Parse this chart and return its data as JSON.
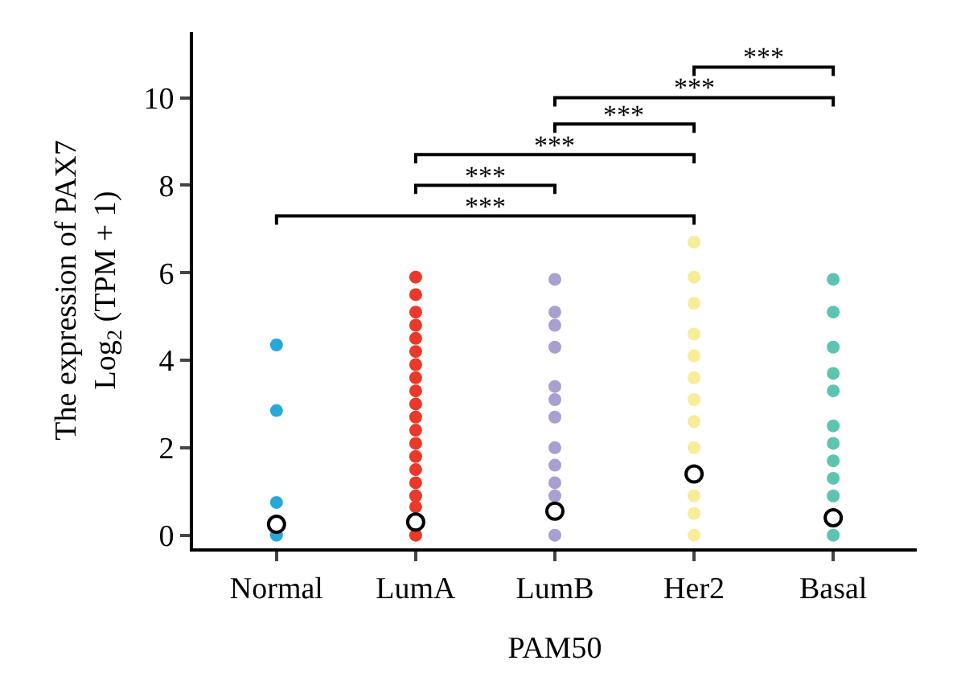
{
  "chart_data": {
    "type": "scatter",
    "xlabel": "PAM50",
    "ylabel": "The expression of PAX7\nLog$_{2}$ (TPM + 1)",
    "categories": [
      "Normal",
      "LumA",
      "LumB",
      "Her2",
      "Basal"
    ],
    "ylim": [
      -0.3,
      11.5
    ],
    "yticks": [
      0,
      2,
      4,
      6,
      8,
      10
    ],
    "grid": false,
    "marker": "circle",
    "series": [
      {
        "color": "#29a8d8",
        "x": [
          "Normal",
          "Normal",
          "Normal",
          "Normal"
        ],
        "values": [
          4.35,
          2.85,
          0.75,
          0
        ]
      },
      {
        "color": "#e8392a",
        "x": [
          "LumA",
          "LumA",
          "LumA",
          "LumA",
          "LumA",
          "LumA",
          "LumA",
          "LumA",
          "LumA",
          "LumA",
          "LumA",
          "LumA",
          "LumA",
          "LumA",
          "LumA",
          "LumA",
          "LumA",
          "LumA",
          "LumA"
        ],
        "values": [
          5.9,
          5.5,
          5.1,
          4.8,
          4.5,
          4.2,
          3.9,
          3.6,
          3.3,
          3.0,
          2.7,
          2.4,
          2.1,
          1.8,
          1.5,
          1.2,
          0.9,
          0.65,
          0
        ]
      },
      {
        "color": "#a99fd0",
        "x": [
          "LumB",
          "LumB",
          "LumB",
          "LumB",
          "LumB",
          "LumB",
          "LumB",
          "LumB",
          "LumB",
          "LumB",
          "LumB",
          "LumB"
        ],
        "values": [
          5.85,
          5.1,
          4.8,
          4.3,
          3.4,
          3.1,
          2.7,
          2.0,
          1.6,
          1.2,
          0.9,
          0
        ]
      },
      {
        "color": "#f7ec98",
        "x": [
          "Her2",
          "Her2",
          "Her2",
          "Her2",
          "Her2",
          "Her2",
          "Her2",
          "Her2",
          "Her2",
          "Her2",
          "Her2",
          "Her2"
        ],
        "values": [
          6.7,
          5.9,
          5.3,
          4.6,
          4.1,
          3.6,
          3.1,
          2.6,
          2.0,
          0.9,
          0.5,
          0
        ]
      },
      {
        "color": "#5ec4b0",
        "x": [
          "Basal",
          "Basal",
          "Basal",
          "Basal",
          "Basal",
          "Basal",
          "Basal",
          "Basal",
          "Basal",
          "Basal",
          "Basal"
        ],
        "values": [
          5.85,
          5.1,
          4.3,
          3.7,
          3.3,
          2.5,
          2.1,
          1.7,
          1.3,
          0.9,
          0
        ]
      },
      {
        "color": "#ffffff",
        "x": [
          "Normal",
          "LumA",
          "LumB",
          "Her2",
          "Basal"
        ],
        "values": [
          0.25,
          0.3,
          0.55,
          1.4,
          0.4
        ]
      }
    ],
    "annotations": [
      "***",
      "***",
      "***",
      "***",
      "***",
      "***"
    ]
  }
}
